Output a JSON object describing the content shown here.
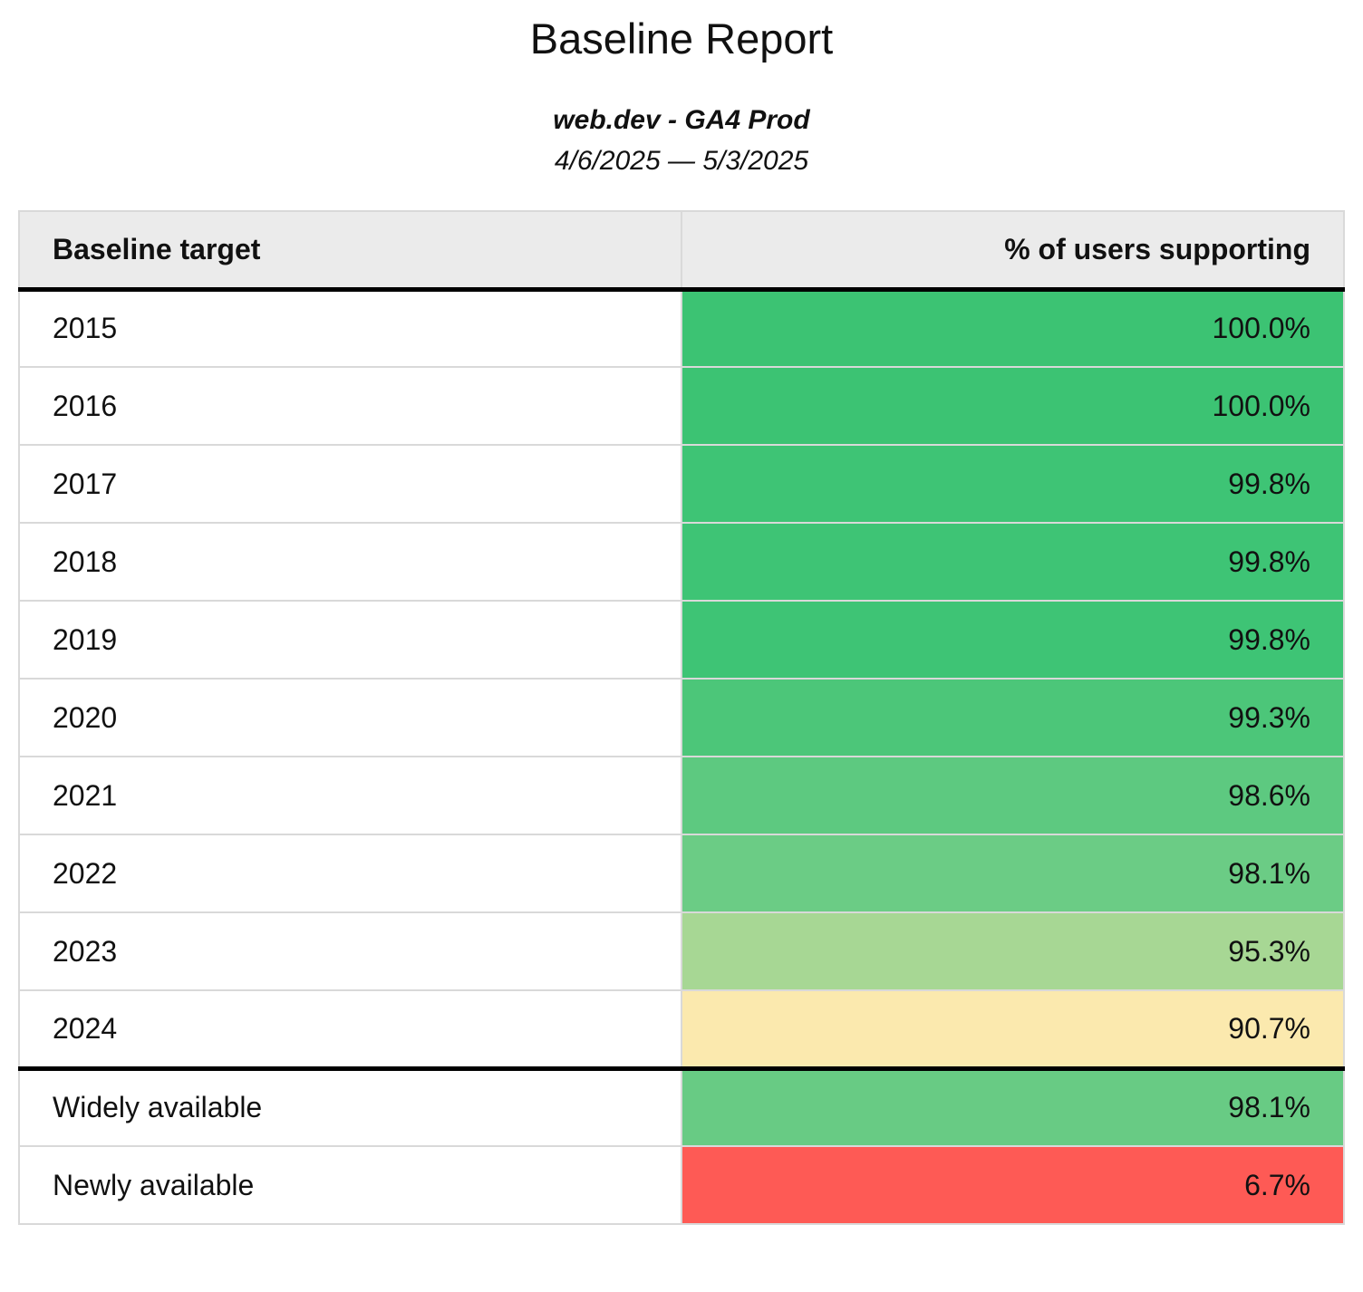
{
  "report": {
    "title": "Baseline Report",
    "subtitle": "web.dev - GA4 Prod",
    "date_range": "4/6/2025 — 5/3/2025"
  },
  "table": {
    "columns": [
      "Baseline target",
      "% of users supporting"
    ],
    "rows": [
      {
        "label": "2015",
        "value": "100.0%",
        "color": "#3cc373"
      },
      {
        "label": "2016",
        "value": "100.0%",
        "color": "#3cc373"
      },
      {
        "label": "2017",
        "value": "99.8%",
        "color": "#3ec475"
      },
      {
        "label": "2018",
        "value": "99.8%",
        "color": "#3ec475"
      },
      {
        "label": "2019",
        "value": "99.8%",
        "color": "#3ec475"
      },
      {
        "label": "2020",
        "value": "99.3%",
        "color": "#4cc679"
      },
      {
        "label": "2021",
        "value": "98.6%",
        "color": "#5dc980"
      },
      {
        "label": "2022",
        "value": "98.1%",
        "color": "#6bcc85"
      },
      {
        "label": "2023",
        "value": "95.3%",
        "color": "#a7d794"
      },
      {
        "label": "2024",
        "value": "90.7%",
        "color": "#fbe9ae"
      },
      {
        "label": "Widely available",
        "value": "98.1%",
        "color": "#68cb84"
      },
      {
        "label": "Newly available",
        "value": "6.7%",
        "color": "#fe5a55"
      }
    ],
    "colors": {
      "header_bg": "#ebebeb",
      "cell_border": "#d9d9d9",
      "section_divider": "#000000"
    }
  }
}
